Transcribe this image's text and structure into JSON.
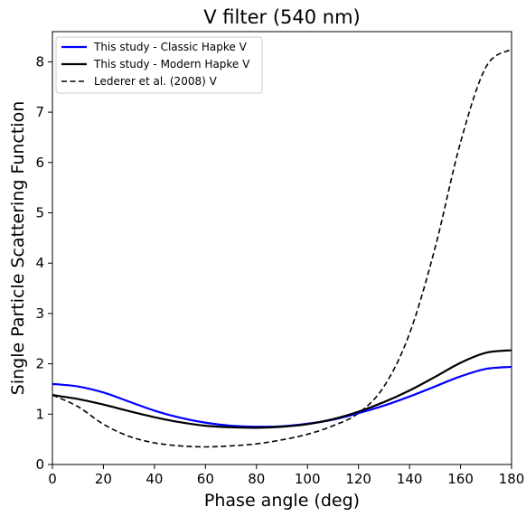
{
  "chart_data": {
    "type": "line",
    "title": "V filter (540 nm)",
    "xlabel": "Phase angle (deg)",
    "ylabel": "Single Particle Scattering Function",
    "xlim": [
      0,
      180
    ],
    "ylim": [
      0,
      8.6
    ],
    "xticks": [
      0,
      20,
      40,
      60,
      80,
      100,
      120,
      140,
      160,
      180
    ],
    "yticks": [
      0,
      1,
      2,
      3,
      4,
      5,
      6,
      7,
      8
    ],
    "grid": false,
    "legend_position": "top-left",
    "x": [
      0,
      10,
      20,
      30,
      40,
      50,
      60,
      70,
      80,
      90,
      100,
      110,
      120,
      130,
      140,
      150,
      160,
      170,
      180
    ],
    "series": [
      {
        "name": "This study - Classic Hapke V",
        "color": "#0000ff",
        "dash": "solid",
        "values": [
          1.6,
          1.55,
          1.43,
          1.25,
          1.07,
          0.93,
          0.83,
          0.77,
          0.75,
          0.76,
          0.81,
          0.89,
          1.02,
          1.17,
          1.35,
          1.55,
          1.75,
          1.9,
          1.94
        ]
      },
      {
        "name": "This study - Modern Hapke V",
        "color": "#000000",
        "dash": "solid",
        "values": [
          1.38,
          1.3,
          1.19,
          1.06,
          0.94,
          0.84,
          0.77,
          0.74,
          0.73,
          0.75,
          0.8,
          0.9,
          1.05,
          1.24,
          1.47,
          1.74,
          2.02,
          2.22,
          2.27
        ]
      },
      {
        "name": "Lederer et al. (2008) V",
        "color": "#000000",
        "dash": "dashed",
        "values": [
          1.38,
          1.15,
          0.8,
          0.56,
          0.43,
          0.37,
          0.35,
          0.37,
          0.41,
          0.49,
          0.6,
          0.77,
          1.02,
          1.55,
          2.6,
          4.3,
          6.4,
          7.9,
          8.25
        ]
      }
    ]
  }
}
